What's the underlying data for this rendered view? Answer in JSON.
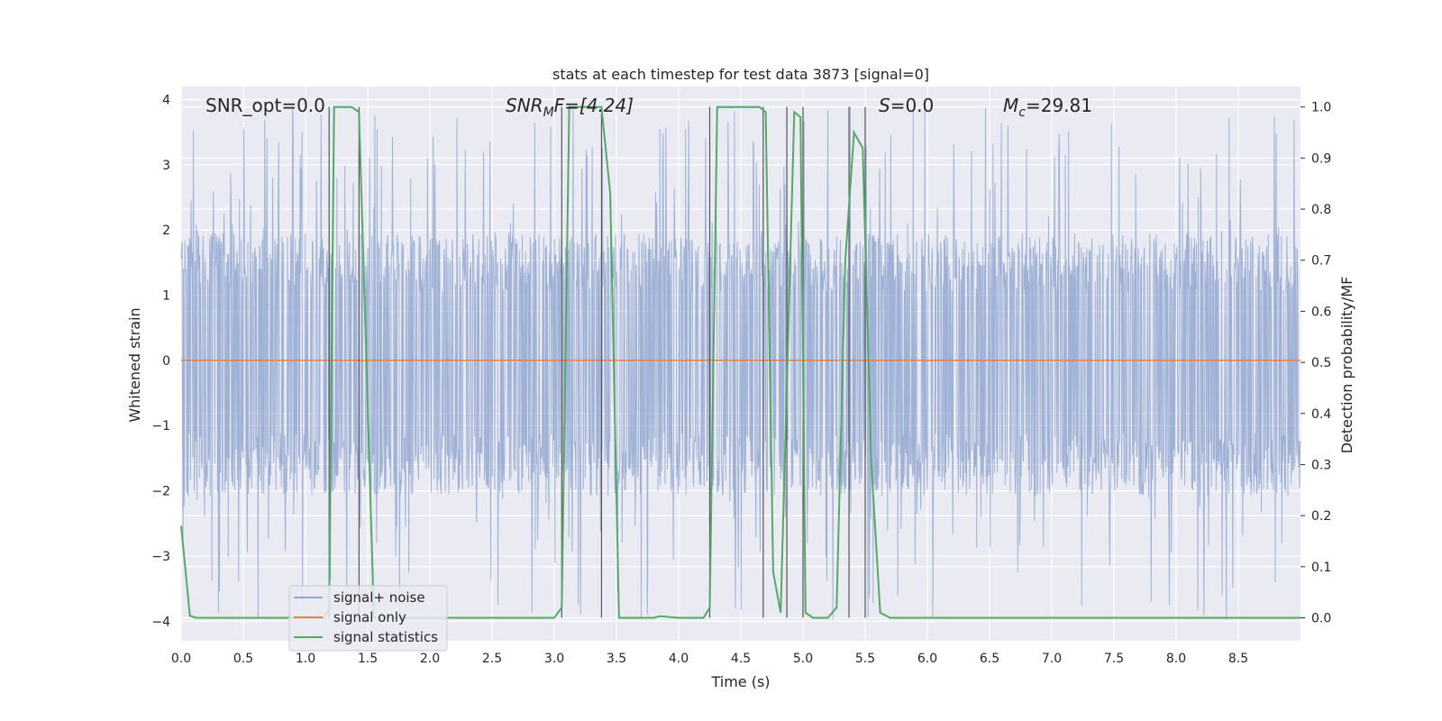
{
  "chart_data": {
    "type": "line",
    "title": "stats at each timestep for test data 3873 [signal=0]",
    "xlabel": "Time (s)",
    "ylabel_left": "Whitened strain",
    "ylabel_right": "Detection probability/MF",
    "xlim": [
      0.0,
      9.0
    ],
    "ylim_left": [
      -4.3,
      4.2
    ],
    "ylim_right": [
      -0.045,
      1.04
    ],
    "xticks": [
      "0.0",
      "0.5",
      "1.0",
      "1.5",
      "2.0",
      "2.5",
      "3.0",
      "3.5",
      "4.0",
      "4.5",
      "5.0",
      "5.5",
      "6.0",
      "6.5",
      "7.0",
      "7.5",
      "8.0",
      "8.5"
    ],
    "yticks_left": [
      "4",
      "3",
      "2",
      "1",
      "0",
      "−1",
      "−2",
      "−3",
      "−4"
    ],
    "yticks_right": [
      "1.0",
      "0.9",
      "0.8",
      "0.7",
      "0.6",
      "0.5",
      "0.4",
      "0.3",
      "0.2",
      "0.1",
      "0.0"
    ],
    "grid": true,
    "legend_position": "lower-left",
    "annotations": {
      "snr_opt": "SNR_opt=0.0",
      "snr_mf_base": "SNR",
      "snr_mf_sub": "M",
      "snr_mf_tail": "F=[4.24]",
      "s_base": "S",
      "s_tail": "=0.0",
      "mc_base": "M",
      "mc_sub": "c",
      "mc_tail": "=29.81"
    },
    "series": [
      {
        "name": "signal+ noise",
        "color": "#92a8d1",
        "noise_envelope": {
          "core_upper": 1.5,
          "core_lower": -1.6,
          "max_peak": 3.9,
          "min_trough": -4.0
        }
      },
      {
        "name": "signal only",
        "color": "#dd8452",
        "x": [
          0.0,
          9.0
        ],
        "y": [
          0.0,
          0.0
        ]
      },
      {
        "name": "signal statistics",
        "color": "#55a868",
        "x": [
          0.0,
          0.07,
          0.12,
          0.5,
          1.0,
          1.15,
          1.19,
          1.23,
          1.37,
          1.43,
          1.49,
          1.55,
          2.0,
          2.5,
          3.0,
          3.06,
          3.12,
          3.38,
          3.45,
          3.52,
          3.6,
          3.8,
          3.85,
          4.0,
          4.2,
          4.25,
          4.31,
          4.65,
          4.7,
          4.76,
          4.82,
          4.93,
          4.98,
          5.02,
          5.08,
          5.2,
          5.27,
          5.34,
          5.41,
          5.48,
          5.55,
          5.62,
          5.7,
          6.0,
          7.0,
          8.0,
          9.0
        ],
        "y": [
          0.18,
          0.004,
          0.0,
          0.0,
          0.0,
          0.0,
          0.02,
          1.0,
          1.0,
          0.99,
          0.5,
          0.0,
          0.0,
          0.0,
          0.0,
          0.02,
          1.0,
          1.0,
          0.83,
          0.0,
          0.0,
          0.0,
          0.003,
          0.0,
          0.0,
          0.02,
          1.0,
          1.0,
          0.99,
          0.09,
          0.01,
          0.99,
          0.98,
          0.01,
          0.0,
          0.0,
          0.02,
          0.7,
          0.95,
          0.92,
          0.3,
          0.01,
          0.0,
          0.0,
          0.0,
          0.0,
          0.0
        ]
      }
    ],
    "event_lines_x": [
      1.19,
      1.43,
      3.06,
      3.38,
      4.25,
      4.68,
      4.87,
      5.0,
      5.37,
      5.5
    ]
  }
}
